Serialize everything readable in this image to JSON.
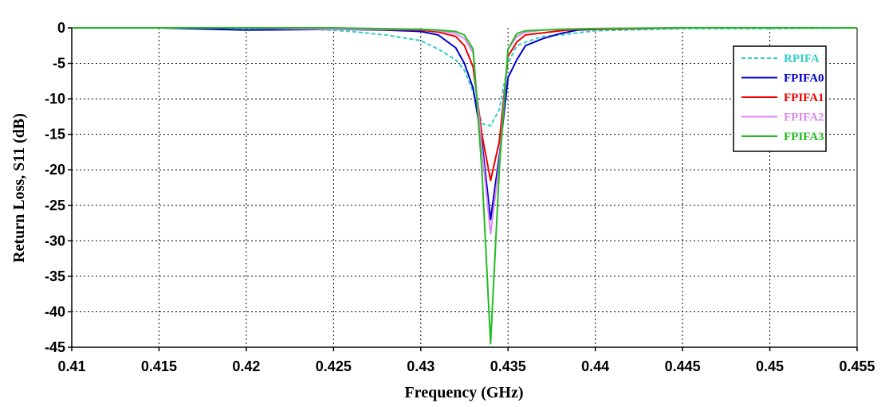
{
  "chart_data": {
    "type": "line",
    "title": "",
    "xlabel": "Frequency (GHz)",
    "ylabel": "Return Loss, S11 (dB)",
    "xlim": [
      0.41,
      0.455
    ],
    "ylim": [
      -45,
      0
    ],
    "x_ticks": [
      "0.41",
      "0.415",
      "0.42",
      "0.425",
      "0.43",
      "0.435",
      "0.44",
      "0.445",
      "0.45",
      "0.455"
    ],
    "y_ticks": [
      "0",
      "-5",
      "-10",
      "-15",
      "-20",
      "-25",
      "-30",
      "-35",
      "-40",
      "-45"
    ],
    "grid": true,
    "legend_position": "top-right",
    "series": [
      {
        "name": "RPIFA",
        "color": "#33cccc",
        "dash": "dashed",
        "x": [
          0.41,
          0.415,
          0.42,
          0.424,
          0.426,
          0.428,
          0.43,
          0.431,
          0.432,
          0.4325,
          0.433,
          0.4335,
          0.434,
          0.4345,
          0.435,
          0.4355,
          0.436,
          0.437,
          0.438,
          0.44,
          0.445,
          0.45,
          0.455
        ],
        "y": [
          0,
          0,
          -0.2,
          -0.2,
          -0.5,
          -1.0,
          -1.8,
          -3.0,
          -4.5,
          -6.0,
          -9.0,
          -13.5,
          -13.8,
          -11.5,
          -5.0,
          -2.5,
          -2.0,
          -1.2,
          -1.0,
          -0.4,
          -0.1,
          -0.1,
          0
        ]
      },
      {
        "name": "FPIFA0",
        "color": "#0000cc",
        "dash": "solid",
        "x": [
          0.41,
          0.415,
          0.42,
          0.425,
          0.428,
          0.43,
          0.431,
          0.432,
          0.4325,
          0.433,
          0.4335,
          0.434,
          0.4345,
          0.435,
          0.4355,
          0.436,
          0.437,
          0.438,
          0.439,
          0.44,
          0.445,
          0.45,
          0.455
        ],
        "y": [
          0,
          0,
          -0.3,
          -0.2,
          -0.3,
          -0.5,
          -1.0,
          -2.8,
          -5.0,
          -8.5,
          -16.0,
          -27.0,
          -18.0,
          -7.0,
          -4.5,
          -2.5,
          -1.5,
          -0.8,
          -0.3,
          -0.2,
          0,
          0,
          0
        ]
      },
      {
        "name": "FPIFA1",
        "color": "#ee0000",
        "dash": "solid",
        "x": [
          0.41,
          0.42,
          0.425,
          0.43,
          0.431,
          0.432,
          0.4325,
          0.433,
          0.4335,
          0.434,
          0.4345,
          0.435,
          0.4355,
          0.436,
          0.437,
          0.438,
          0.439,
          0.44,
          0.445,
          0.45,
          0.455
        ],
        "y": [
          0,
          0,
          -0.1,
          -0.3,
          -0.6,
          -1.2,
          -2.5,
          -5.5,
          -15.0,
          -21.5,
          -16.0,
          -4.0,
          -2.0,
          -1.0,
          -0.7,
          -0.4,
          -0.2,
          -0.2,
          0,
          0,
          0
        ]
      },
      {
        "name": "FPIFA2",
        "color": "#dd88ee",
        "dash": "solid",
        "x": [
          0.41,
          0.42,
          0.425,
          0.43,
          0.431,
          0.432,
          0.4325,
          0.433,
          0.4335,
          0.434,
          0.4345,
          0.435,
          0.4355,
          0.436,
          0.437,
          0.438,
          0.44,
          0.445,
          0.45,
          0.455
        ],
        "y": [
          0,
          0,
          -0.2,
          -0.2,
          -0.4,
          -0.8,
          -1.5,
          -3.5,
          -17.0,
          -29.0,
          -19.0,
          -3.0,
          -1.2,
          -0.6,
          -0.3,
          -0.2,
          -0.1,
          0,
          0,
          0
        ]
      },
      {
        "name": "FPIFA3",
        "color": "#22bb22",
        "dash": "solid",
        "x": [
          0.41,
          0.42,
          0.425,
          0.43,
          0.431,
          0.432,
          0.4325,
          0.433,
          0.4335,
          0.434,
          0.4345,
          0.435,
          0.4355,
          0.436,
          0.437,
          0.438,
          0.44,
          0.445,
          0.45,
          0.455
        ],
        "y": [
          0,
          0,
          0,
          -0.2,
          -0.3,
          -0.5,
          -1.0,
          -3.0,
          -20.0,
          -44.5,
          -20.0,
          -3.0,
          -0.8,
          -0.4,
          -0.3,
          -0.2,
          -0.1,
          0,
          0,
          0
        ]
      }
    ]
  }
}
